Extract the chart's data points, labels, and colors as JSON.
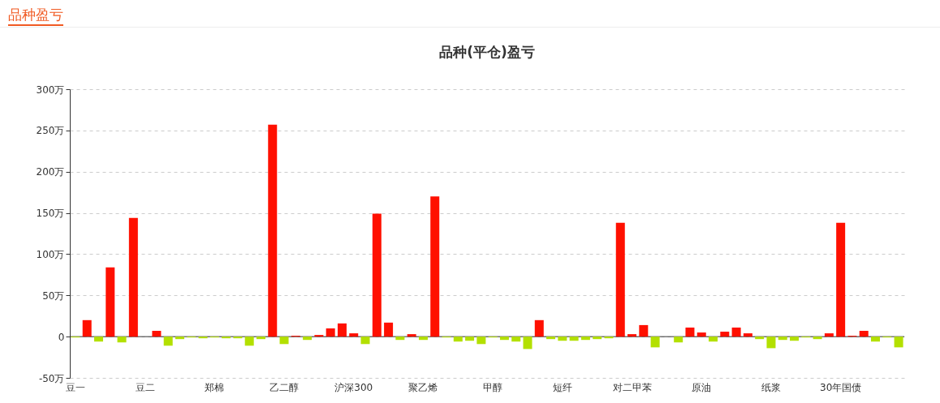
{
  "chart_data": {
    "type": "bar",
    "title": "品种(平仓)盈亏",
    "annotations": [
      "品种盈亏"
    ],
    "categories": [
      "豆一",
      null,
      null,
      null,
      null,
      null,
      "豆二",
      null,
      null,
      null,
      null,
      null,
      "郑棉",
      null,
      null,
      null,
      null,
      null,
      "乙二醇",
      null,
      null,
      null,
      null,
      null,
      "沪深300",
      null,
      null,
      null,
      null,
      null,
      "聚乙烯",
      null,
      null,
      null,
      null,
      null,
      "甲醇",
      null,
      null,
      null,
      null,
      null,
      "短纤",
      null,
      null,
      null,
      null,
      null,
      "对二甲苯",
      null,
      null,
      null,
      null,
      null,
      "原油",
      null,
      null,
      null,
      null,
      null,
      "纸浆",
      null,
      null,
      null,
      null,
      null,
      "30年国债",
      null,
      null,
      null,
      null,
      null
    ],
    "values": [
      -1,
      20,
      -6,
      84,
      -7,
      144,
      0,
      7,
      -11,
      -3,
      -1,
      -2,
      -1,
      -2,
      -2,
      -11,
      -3,
      257,
      -9,
      1,
      -4,
      2,
      10,
      16,
      4,
      -9,
      149,
      17,
      -4,
      3,
      -4,
      170,
      -1,
      -6,
      -5,
      -9,
      -1,
      -4,
      -6,
      -15,
      20,
      -3,
      -5,
      -5,
      -4,
      -3,
      -2,
      138,
      3,
      14,
      -13,
      0,
      -7,
      11,
      5,
      -6,
      6,
      11,
      4,
      -3,
      -14,
      -4,
      -5,
      -1,
      -3,
      4,
      138,
      1,
      7,
      -6,
      -1,
      -13
    ],
    "colors": [
      "#b3e000",
      "#ff1000",
      "#b3e000",
      "#ff1000",
      "#b3e000",
      "#ff1000",
      "#ff1000",
      "#ff1000",
      "#b3e000",
      "#b3e000",
      "#b3e000",
      "#b3e000",
      "#b3e000",
      "#b3e000",
      "#b3e000",
      "#b3e000",
      "#b3e000",
      "#ff1000",
      "#b3e000",
      "#ff1000",
      "#b3e000",
      "#ff1000",
      "#ff1000",
      "#ff1000",
      "#ff1000",
      "#b3e000",
      "#ff1000",
      "#ff1000",
      "#b3e000",
      "#ff1000",
      "#b3e000",
      "#ff1000",
      "#b3e000",
      "#b3e000",
      "#b3e000",
      "#b3e000",
      "#b3e000",
      "#b3e000",
      "#b3e000",
      "#b3e000",
      "#ff1000",
      "#b3e000",
      "#b3e000",
      "#b3e000",
      "#b3e000",
      "#b3e000",
      "#b3e000",
      "#ff1000",
      "#ff1000",
      "#ff1000",
      "#b3e000",
      "#ff1000",
      "#b3e000",
      "#ff1000",
      "#ff1000",
      "#b3e000",
      "#ff1000",
      "#ff1000",
      "#ff1000",
      "#b3e000",
      "#b3e000",
      "#b3e000",
      "#b3e000",
      "#b3e000",
      "#b3e000",
      "#ff1000",
      "#ff1000",
      "#ff1000",
      "#ff1000",
      "#b3e000",
      "#b3e000",
      "#b3e000"
    ],
    "ylim": [
      -50,
      300
    ],
    "yticks": [
      {
        "value": -50,
        "label": "-50万"
      },
      {
        "value": 0,
        "label": "0"
      },
      {
        "value": 50,
        "label": "50万"
      },
      {
        "value": 100,
        "label": "100万"
      },
      {
        "value": 150,
        "label": "150万"
      },
      {
        "value": 200,
        "label": "200万"
      },
      {
        "value": 250,
        "label": "250万"
      },
      {
        "value": 300,
        "label": "300万"
      }
    ],
    "grid": "y"
  }
}
